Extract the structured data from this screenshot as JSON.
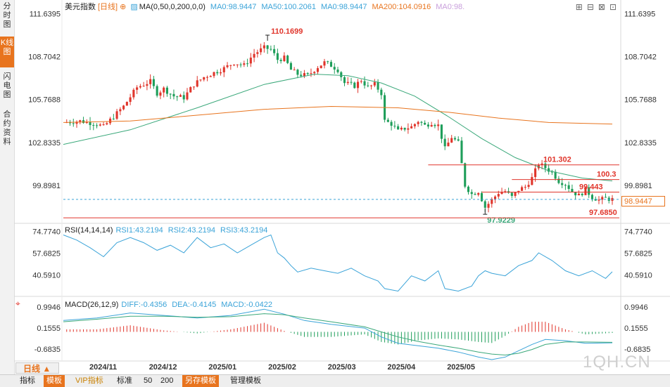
{
  "sidebar": {
    "tabs": [
      {
        "label": "分时图",
        "active": false
      },
      {
        "label": "K线图",
        "active": true
      },
      {
        "label": "闪电图",
        "active": false
      },
      {
        "label": "合约资料",
        "active": false
      }
    ]
  },
  "header": {
    "symbol": "美元指数",
    "period_tag": "[日线]",
    "ma_params": "MA(0,50,0,200,0,0)",
    "ma_values": [
      {
        "text": "MA0:98.9447",
        "color": "#3aa3d8"
      },
      {
        "text": "MA50:100.2061",
        "color": "#3aa3d8"
      },
      {
        "text": "MA0:98.9447",
        "color": "#3aa3d8"
      },
      {
        "text": "MA200:104.0916",
        "color": "#e8741e"
      },
      {
        "text": "MA0:98.",
        "color": "#c9a0dc"
      }
    ]
  },
  "rsi_header": {
    "title": "RSI(14,14,14)",
    "values": [
      {
        "text": "RSI1:43.2194",
        "color": "#3aa3d8"
      },
      {
        "text": "RSI2:43.2194",
        "color": "#3aa3d8"
      },
      {
        "text": "RSI3:43.2194",
        "color": "#3aa3d8"
      }
    ]
  },
  "macd_header": {
    "title": "MACD(26,12,9)",
    "values": [
      {
        "text": "DIFF:-0.4356",
        "color": "#3aa3d8"
      },
      {
        "text": "DEA:-0.4145",
        "color": "#3aa3d8"
      },
      {
        "text": "MACD:-0.0422",
        "color": "#3aa3d8"
      }
    ]
  },
  "price_axis_labels": [
    "111.6395",
    "108.7042",
    "105.7688",
    "102.8335",
    "99.8981"
  ],
  "rsi_axis_labels": [
    "74.7740",
    "57.6825",
    "40.5910"
  ],
  "macd_axis_labels": [
    "0.9946",
    "0.1555",
    "-0.6835"
  ],
  "date_labels": [
    "2024/11",
    "2024/12",
    "2025/01",
    "2025/02",
    "2025/03",
    "2025/04",
    "2025/05"
  ],
  "annotations": {
    "high_label": "110.1699",
    "low_label": "97.9229",
    "levels": [
      "101.302",
      "100.3",
      "99.443",
      "97.6850"
    ],
    "last_price": "98.9447"
  },
  "colors": {
    "up": "#e0352b",
    "down": "#1e9e5a",
    "ma50": "#3aa87a",
    "ma200": "#e8741e",
    "line_blue": "#3aa3d8",
    "level_red": "#e0352b"
  },
  "bottom_bar": {
    "period_button": "日线",
    "items": [
      {
        "label": "指标",
        "style": "normal"
      },
      {
        "label": "模板",
        "style": "orange"
      },
      {
        "label": "VIP指标",
        "style": "vip"
      },
      {
        "label": "标准",
        "style": "normal"
      },
      {
        "label": "50",
        "style": "normal"
      },
      {
        "label": "200",
        "style": "normal"
      },
      {
        "label": "另存模板",
        "style": "orange"
      },
      {
        "label": "管理模板",
        "style": "normal"
      }
    ]
  },
  "watermark": "1QH.CN",
  "chart_data": {
    "type": "candlestick",
    "title": "美元指数 [日线]",
    "ylim": [
      97.4,
      111.9
    ],
    "yticks": [
      111.6395,
      108.7042,
      105.7688,
      102.8335,
      99.8981
    ],
    "x_categories": [
      "2024/11",
      "2024/12",
      "2025/01",
      "2025/02",
      "2025/03",
      "2025/04",
      "2025/05"
    ],
    "close_path": [
      [
        0,
        104.2
      ],
      [
        5,
        104.3
      ],
      [
        10,
        104.1
      ],
      [
        12,
        103.9
      ],
      [
        15,
        104.6
      ],
      [
        18,
        105.3
      ],
      [
        22,
        106.6
      ],
      [
        26,
        107.0
      ],
      [
        28,
        106.2
      ],
      [
        30,
        106.5
      ],
      [
        33,
        106.0
      ],
      [
        36,
        105.9
      ],
      [
        39,
        106.8
      ],
      [
        42,
        107.3
      ],
      [
        45,
        107.6
      ],
      [
        48,
        107.9
      ],
      [
        51,
        108.3
      ],
      [
        54,
        108.1
      ],
      [
        57,
        108.9
      ],
      [
        60,
        109.3
      ],
      [
        62,
        109.2
      ],
      [
        64,
        108.5
      ],
      [
        66,
        108.6
      ],
      [
        68,
        107.8
      ],
      [
        70,
        107.5
      ],
      [
        73,
        107.4
      ],
      [
        76,
        108.0
      ],
      [
        78,
        108.3
      ],
      [
        80,
        108.1
      ],
      [
        82,
        107.8
      ],
      [
        84,
        106.9
      ],
      [
        87,
        106.7
      ],
      [
        89,
        107.1
      ],
      [
        91,
        106.6
      ],
      [
        93,
        106.8
      ],
      [
        95,
        106.2
      ],
      [
        96,
        104.3
      ],
      [
        98,
        104.1
      ],
      [
        100,
        103.6
      ],
      [
        102,
        103.8
      ],
      [
        104,
        103.9
      ],
      [
        106,
        104.3
      ],
      [
        108,
        104.0
      ],
      [
        110,
        104.2
      ],
      [
        112,
        104.0
      ],
      [
        114,
        102.4
      ],
      [
        116,
        103.2
      ],
      [
        118,
        102.8
      ],
      [
        120,
        99.9
      ],
      [
        122,
        99.3
      ],
      [
        124,
        99.5
      ],
      [
        126,
        98.4
      ],
      [
        128,
        98.9
      ],
      [
        130,
        99.4
      ],
      [
        132,
        99.5
      ],
      [
        134,
        99.1
      ],
      [
        136,
        99.6
      ],
      [
        138,
        99.8
      ],
      [
        140,
        100.4
      ],
      [
        142,
        101.4
      ],
      [
        144,
        101.1
      ],
      [
        146,
        100.8
      ],
      [
        148,
        100.2
      ],
      [
        150,
        100.0
      ],
      [
        152,
        99.5
      ],
      [
        154,
        99.2
      ],
      [
        156,
        99.6
      ],
      [
        158,
        99.1
      ],
      [
        160,
        98.9
      ],
      [
        162,
        99.0
      ],
      [
        164,
        98.9447
      ]
    ],
    "high": {
      "value": 110.1699,
      "index": 61
    },
    "low": {
      "value": 97.9229,
      "index": 126
    },
    "horizontal_levels": [
      101.302,
      100.3,
      99.443,
      97.685
    ],
    "last": 98.9447,
    "series": [
      {
        "name": "MA50",
        "values": [
          [
            0,
            102.7
          ],
          [
            20,
            103.7
          ],
          [
            40,
            105.2
          ],
          [
            60,
            106.8
          ],
          [
            75,
            107.5
          ],
          [
            85,
            107.4
          ],
          [
            95,
            106.9
          ],
          [
            105,
            106.0
          ],
          [
            115,
            104.6
          ],
          [
            125,
            103.1
          ],
          [
            135,
            101.8
          ],
          [
            145,
            100.9
          ],
          [
            155,
            100.4
          ],
          [
            164,
            100.2061
          ]
        ]
      },
      {
        "name": "MA200",
        "values": [
          [
            0,
            104.2
          ],
          [
            20,
            104.3
          ],
          [
            40,
            104.7
          ],
          [
            60,
            105.1
          ],
          [
            80,
            105.3
          ],
          [
            100,
            105.2
          ],
          [
            115,
            104.9
          ],
          [
            130,
            104.5
          ],
          [
            145,
            104.2
          ],
          [
            164,
            104.0916
          ]
        ]
      }
    ],
    "rsi": {
      "ylim": [
        25,
        80
      ],
      "yticks": [
        74.774,
        57.6825,
        40.591
      ],
      "values": [
        [
          0,
          72
        ],
        [
          4,
          68
        ],
        [
          8,
          62
        ],
        [
          12,
          55
        ],
        [
          16,
          66
        ],
        [
          20,
          70
        ],
        [
          24,
          66
        ],
        [
          28,
          60
        ],
        [
          32,
          64
        ],
        [
          36,
          58
        ],
        [
          40,
          70
        ],
        [
          44,
          62
        ],
        [
          48,
          65
        ],
        [
          52,
          58
        ],
        [
          56,
          64
        ],
        [
          60,
          70
        ],
        [
          62,
          72
        ],
        [
          64,
          58
        ],
        [
          66,
          54
        ],
        [
          68,
          48
        ],
        [
          70,
          43
        ],
        [
          74,
          46
        ],
        [
          78,
          44
        ],
        [
          82,
          42
        ],
        [
          86,
          46
        ],
        [
          90,
          40
        ],
        [
          94,
          36
        ],
        [
          96,
          30
        ],
        [
          100,
          28
        ],
        [
          104,
          40
        ],
        [
          108,
          36
        ],
        [
          112,
          44
        ],
        [
          114,
          30
        ],
        [
          118,
          28
        ],
        [
          122,
          32
        ],
        [
          124,
          40
        ],
        [
          126,
          44
        ],
        [
          128,
          42
        ],
        [
          132,
          40
        ],
        [
          136,
          48
        ],
        [
          140,
          52
        ],
        [
          142,
          58
        ],
        [
          146,
          52
        ],
        [
          150,
          44
        ],
        [
          154,
          40
        ],
        [
          158,
          44
        ],
        [
          162,
          38
        ],
        [
          164,
          43.2194
        ]
      ]
    },
    "macd": {
      "ylim": [
        -1.1,
        1.35
      ],
      "yticks": [
        0.9946,
        0.1555,
        -0.6835
      ],
      "diff": [
        [
          0,
          0.45
        ],
        [
          10,
          0.55
        ],
        [
          20,
          0.75
        ],
        [
          30,
          0.65
        ],
        [
          40,
          0.55
        ],
        [
          50,
          0.65
        ],
        [
          60,
          0.9
        ],
        [
          66,
          0.7
        ],
        [
          72,
          0.45
        ],
        [
          80,
          0.3
        ],
        [
          90,
          0.15
        ],
        [
          95,
          -0.2
        ],
        [
          100,
          -0.45
        ],
        [
          106,
          -0.55
        ],
        [
          112,
          -0.65
        ],
        [
          118,
          -0.8
        ],
        [
          124,
          -1.0
        ],
        [
          128,
          -1.1
        ],
        [
          132,
          -1.0
        ],
        [
          136,
          -0.75
        ],
        [
          140,
          -0.5
        ],
        [
          144,
          -0.3
        ],
        [
          150,
          -0.35
        ],
        [
          156,
          -0.45
        ],
        [
          164,
          -0.4356
        ]
      ],
      "dea": [
        [
          0,
          0.4
        ],
        [
          10,
          0.5
        ],
        [
          20,
          0.62
        ],
        [
          30,
          0.62
        ],
        [
          40,
          0.58
        ],
        [
          50,
          0.6
        ],
        [
          60,
          0.72
        ],
        [
          66,
          0.68
        ],
        [
          72,
          0.55
        ],
        [
          80,
          0.4
        ],
        [
          90,
          0.2
        ],
        [
          95,
          0.0
        ],
        [
          100,
          -0.2
        ],
        [
          106,
          -0.38
        ],
        [
          112,
          -0.52
        ],
        [
          118,
          -0.65
        ],
        [
          124,
          -0.8
        ],
        [
          128,
          -0.88
        ],
        [
          132,
          -0.92
        ],
        [
          136,
          -0.85
        ],
        [
          140,
          -0.7
        ],
        [
          144,
          -0.5
        ],
        [
          150,
          -0.4
        ],
        [
          156,
          -0.4
        ],
        [
          164,
          -0.4145
        ]
      ]
    }
  }
}
